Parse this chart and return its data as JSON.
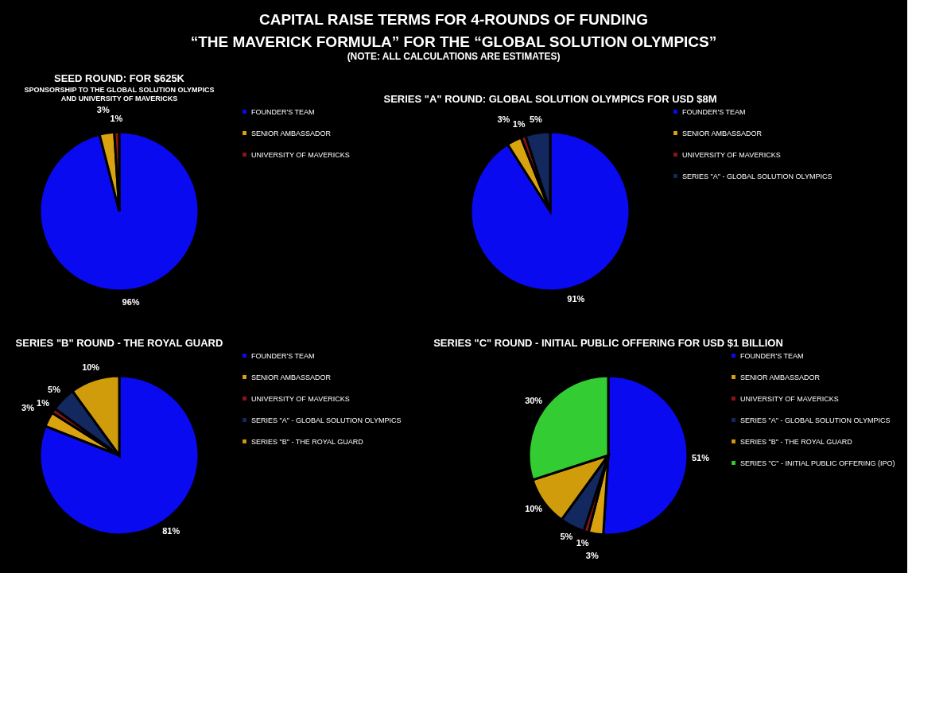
{
  "chart_data": [
    {
      "type": "other",
      "title": "CAPITAL RAISE TERMS FOR 4-ROUNDS OF FUNDING",
      "subtitle": "“THE MAVERICK FORMULA” FOR THE “GLOBAL SOLUTION OLYMPICS”",
      "annotations": [
        "(NOTE: ALL CALCULATIONS ARE ESTIMATES)"
      ]
    },
    {
      "type": "pie",
      "title": "SEED ROUND: FOR $625K",
      "subtitle": "SPONSORSHIP TO THE GLOBAL SOLUTION OLYMPICS AND UNIVERSITY OF MAVERICKS",
      "legend": "right",
      "categories": [
        "FOUNDER'S TEAM",
        "SENIOR AMBASSADOR",
        "UNIVERSITY OF MAVERICKS"
      ],
      "values": [
        96,
        3,
        1
      ],
      "value_labels": [
        "96%",
        "3%",
        "1%"
      ],
      "colors": [
        "#0a0af0",
        "#d9a30f",
        "#8e1414"
      ]
    },
    {
      "type": "pie",
      "title": "SERIES \"A\" ROUND:  GLOBAL SOLUTION OLYMPICS FOR USD $8M",
      "legend": "right",
      "categories": [
        "FOUNDER'S TEAM",
        "SENIOR AMBASSADOR",
        "UNIVERSITY OF MAVERICKS",
        "SERIES \"A\" - GLOBAL SOLUTION OLYMPICS"
      ],
      "values": [
        91,
        3,
        1,
        5
      ],
      "value_labels": [
        "91%",
        "3%",
        "1%",
        "5%"
      ],
      "colors": [
        "#0a0af0",
        "#d9a30f",
        "#8e1414",
        "#12285e"
      ]
    },
    {
      "type": "pie",
      "title": "SERIES \"B\" ROUND - THE ROYAL GUARD",
      "legend": "right",
      "categories": [
        "FOUNDER'S TEAM",
        "SENIOR AMBASSADOR",
        "UNIVERSITY OF MAVERICKS",
        "SERIES \"A\" - GLOBAL SOLUTION OLYMPICS",
        "SERIES \"B\" - THE ROYAL GUARD"
      ],
      "values": [
        81,
        3,
        1,
        5,
        10
      ],
      "value_labels": [
        "81%",
        "3%",
        "1%",
        "5%",
        "10%"
      ],
      "colors": [
        "#0a0af0",
        "#d9a30f",
        "#8e1414",
        "#12285e",
        "#d19c0c"
      ]
    },
    {
      "type": "pie",
      "title": "SERIES \"C\" ROUND - INITIAL PUBLIC OFFERING FOR USD $1 BILLION",
      "legend": "right",
      "categories": [
        "FOUNDER'S TEAM",
        "SENIOR AMBASSADOR",
        "UNIVERSITY OF MAVERICKS",
        "SERIES \"A\" - GLOBAL SOLUTION OLYMPICS",
        "SERIES \"B\" - THE ROYAL GUARD",
        "SERIES \"C\" - INITIAL PUBLIC OFFERING (IPO)"
      ],
      "values": [
        51,
        3,
        1,
        5,
        10,
        30
      ],
      "value_labels": [
        "51%",
        "3%",
        "1%",
        "5%",
        "10%",
        "30%"
      ],
      "colors": [
        "#0a0af0",
        "#d9a30f",
        "#8e1414",
        "#12285e",
        "#d19c0c",
        "#33cc33"
      ]
    }
  ]
}
